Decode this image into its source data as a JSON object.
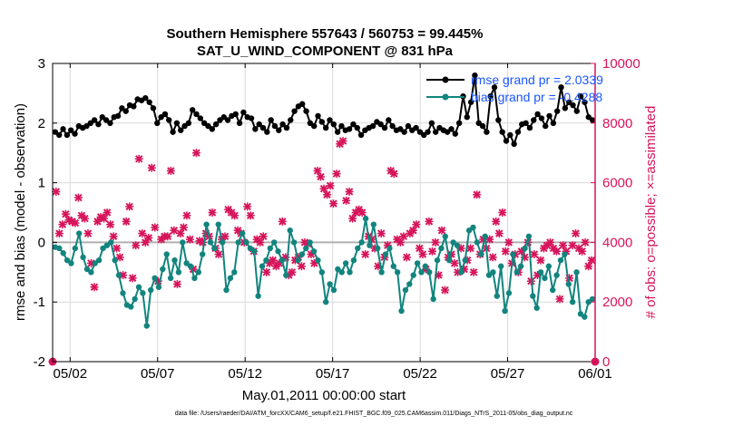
{
  "chart_data": {
    "type": "line",
    "title": "Southern Hemisphere 557643 / 560753 = 99.445%",
    "subtitle": "SAT_U_WIND_COMPONENT @ 831 hPa",
    "xlabel": "May.01,2011 00:00:00 start",
    "ylabel_left": "rmse and bias (model - observation)",
    "ylabel_right": "# of obs: o=possible; ×=assimilated",
    "footer": "data file: /Users/raeder/DAI/ATM_forcXX/CAM6_setup/f.e21.FHIST_BGC.f09_025.CAM6assim.011/Diags_NTrS_2011-05/obs_diag_output.nc",
    "xlim": [
      0,
      31
    ],
    "ylim_left": [
      -2,
      3
    ],
    "ylim_right": [
      0,
      10000
    ],
    "x_ticks": [
      {
        "value": 1,
        "label": "05/02"
      },
      {
        "value": 6,
        "label": "05/07"
      },
      {
        "value": 11,
        "label": "05/12"
      },
      {
        "value": 16,
        "label": "05/17"
      },
      {
        "value": 21,
        "label": "05/22"
      },
      {
        "value": 26,
        "label": "05/27"
      },
      {
        "value": 31,
        "label": "06/01"
      }
    ],
    "y_left_ticks": [
      "-2",
      "-1",
      "0",
      "1",
      "2",
      "3"
    ],
    "y_right_ticks": [
      "0",
      "2000",
      "4000",
      "6000",
      "8000",
      "10000"
    ],
    "colors": {
      "rmse": "#000000",
      "bias": "#12847e",
      "obs": "#d6145a",
      "legend_text": "#1a56ff",
      "zero_line": "#b0b0b0"
    },
    "series": [
      {
        "name": "rmse grand pr = 2.0339",
        "axis": "left",
        "values": [
          1.85,
          1.8,
          1.9,
          1.8,
          1.88,
          1.82,
          1.95,
          1.92,
          1.95,
          2.0,
          2.05,
          1.98,
          2.1,
          2.05,
          2.0,
          2.1,
          2.12,
          2.25,
          2.2,
          2.3,
          2.28,
          2.4,
          2.38,
          2.42,
          2.35,
          2.25,
          2.0,
          2.1,
          2.15,
          2.05,
          1.85,
          2.0,
          1.88,
          1.95,
          2.0,
          2.22,
          2.15,
          2.08,
          2.0,
          1.95,
          1.9,
          1.98,
          2.05,
          2.1,
          2.05,
          2.12,
          2.15,
          2.0,
          2.18,
          2.1,
          2.08,
          1.9,
          1.98,
          1.92,
          1.85,
          2.05,
          1.95,
          1.88,
          1.98,
          1.92,
          2.05,
          2.2,
          2.28,
          2.32,
          2.2,
          2.0,
          1.95,
          2.12,
          2.02,
          1.92,
          2.05,
          1.98,
          1.85,
          1.95,
          1.88,
          1.9,
          1.98,
          1.92,
          1.8,
          1.88,
          1.92,
          1.95,
          2.02,
          1.98,
          1.92,
          2.05,
          1.95,
          1.88,
          1.9,
          1.85,
          1.95,
          1.88,
          1.92,
          1.85,
          1.8,
          1.85,
          2.0,
          1.85,
          1.92,
          1.88,
          1.85,
          1.9,
          1.82,
          2.0,
          2.45,
          2.1,
          2.35,
          2.8,
          2.0,
          1.95,
          1.85,
          2.45,
          2.6,
          2.05,
          1.85,
          1.7,
          1.8,
          1.65,
          1.85,
          1.98,
          2.0,
          1.92,
          2.05,
          2.15,
          2.08,
          1.95,
          2.12,
          2.0,
          2.2,
          2.6,
          2.25,
          2.35,
          2.3,
          2.2,
          2.45,
          2.35,
          2.1,
          2.05
        ]
      },
      {
        "name": "bias grand pr = -0.4288",
        "axis": "left",
        "values": [
          -0.08,
          -0.1,
          -0.18,
          -0.3,
          -0.35,
          -0.1,
          0.15,
          -0.25,
          -0.45,
          -0.5,
          -0.35,
          -0.3,
          -0.1,
          -0.05,
          0.0,
          -0.3,
          -0.55,
          -0.85,
          -1.05,
          -1.08,
          -0.95,
          -0.75,
          -0.85,
          -1.4,
          -0.8,
          -0.6,
          -0.75,
          -0.45,
          -0.2,
          -0.6,
          -0.3,
          -0.5,
          0.0,
          -0.35,
          -0.4,
          -0.6,
          -0.5,
          -0.2,
          0.3,
          0.0,
          -0.1,
          0.3,
          0.0,
          -0.8,
          -0.6,
          -0.5,
          0.0,
          0.15,
          0.0,
          -0.1,
          -0.15,
          -0.9,
          -0.4,
          -0.3,
          -0.1,
          0.0,
          -0.15,
          -0.3,
          -0.55,
          0.2,
          0.0,
          -0.3,
          -0.2,
          -0.1,
          0.0,
          -0.15,
          -0.3,
          -0.5,
          -1.0,
          -0.7,
          -0.8,
          -0.45,
          -0.5,
          -0.35,
          -0.5,
          -0.3,
          -0.1,
          0.0,
          0.4,
          -0.05,
          0.3,
          -0.1,
          -0.5,
          -0.2,
          -0.1,
          -0.4,
          -0.5,
          -1.15,
          -0.8,
          -0.7,
          -0.55,
          -0.35,
          -0.5,
          -0.4,
          -0.5,
          -0.95,
          -0.3,
          -0.1,
          0.1,
          -0.3,
          0.0,
          -0.05,
          -0.5,
          -0.3,
          0.2,
          0.25,
          0.0,
          -0.2,
          0.1,
          -0.55,
          -0.5,
          -0.9,
          -0.4,
          -1.15,
          -0.85,
          -0.2,
          -0.5,
          -0.4,
          -0.1,
          0.1,
          -0.9,
          -1.1,
          -0.5,
          -0.6,
          -0.4,
          -0.8,
          -0.55,
          -0.3,
          -0.2,
          -0.7,
          -1.0,
          -0.5,
          -1.2,
          -1.25,
          -1.0,
          -0.95
        ]
      },
      {
        "name": "obs assimilated",
        "axis": "right",
        "values": [
          5700,
          4300,
          4600,
          4950,
          4750,
          4700,
          4650,
          5500,
          4900,
          4800,
          4300,
          3300,
          2500,
          4700,
          4850,
          4800,
          5000,
          4600,
          4200,
          3800,
          3500,
          2900,
          4700,
          5200,
          2800,
          3900,
          6800,
          4300,
          4000,
          4150,
          6500,
          4500,
          2700,
          4100,
          4200,
          4200,
          6400,
          4400,
          2600,
          4300,
          4500,
          4900,
          4100,
          3100,
          7000,
          4050,
          4000,
          4300,
          4200,
          5000,
          3800,
          3600,
          4100,
          4200,
          5100,
          5000,
          4900,
          4400,
          4300,
          4000,
          5200,
          4900,
          3700,
          4100,
          4000,
          4200,
          3000,
          3300,
          3400,
          3200,
          3300,
          4700,
          3500,
          2900,
          3000,
          3400,
          3500,
          3200,
          4000,
          3950,
          3600,
          3300,
          6400,
          6200,
          5800,
          5600,
          5900,
          5300,
          6300,
          7300,
          7400,
          5400,
          5700,
          4800,
          5000,
          5100,
          5000,
          3600,
          4200,
          4100,
          3800,
          3200,
          4300,
          3500,
          3900,
          6400,
          6300,
          4100,
          4000,
          4200,
          3500,
          4300,
          4400,
          4600,
          3800,
          3600,
          3100,
          4700,
          3700,
          4000,
          2900,
          4400,
          2400,
          3500,
          3600,
          3300,
          3000,
          3800,
          3100,
          3400,
          3800,
          3000,
          5600,
          3600,
          4100,
          3800,
          4100,
          3500,
          4700,
          4300,
          5000,
          3700,
          4000,
          3300,
          3600,
          3000,
          3700,
          3500,
          4000,
          2700,
          3600,
          2900,
          3400,
          3800,
          3900,
          4000,
          3800,
          3700,
          2100,
          3900,
          3700,
          2800,
          3900,
          4300,
          3800,
          3700,
          4000,
          3200,
          3400
        ]
      }
    ],
    "obs_possible_markers": [
      {
        "x": 0,
        "value": 0
      },
      {
        "x": 31,
        "value": 0
      }
    ]
  }
}
